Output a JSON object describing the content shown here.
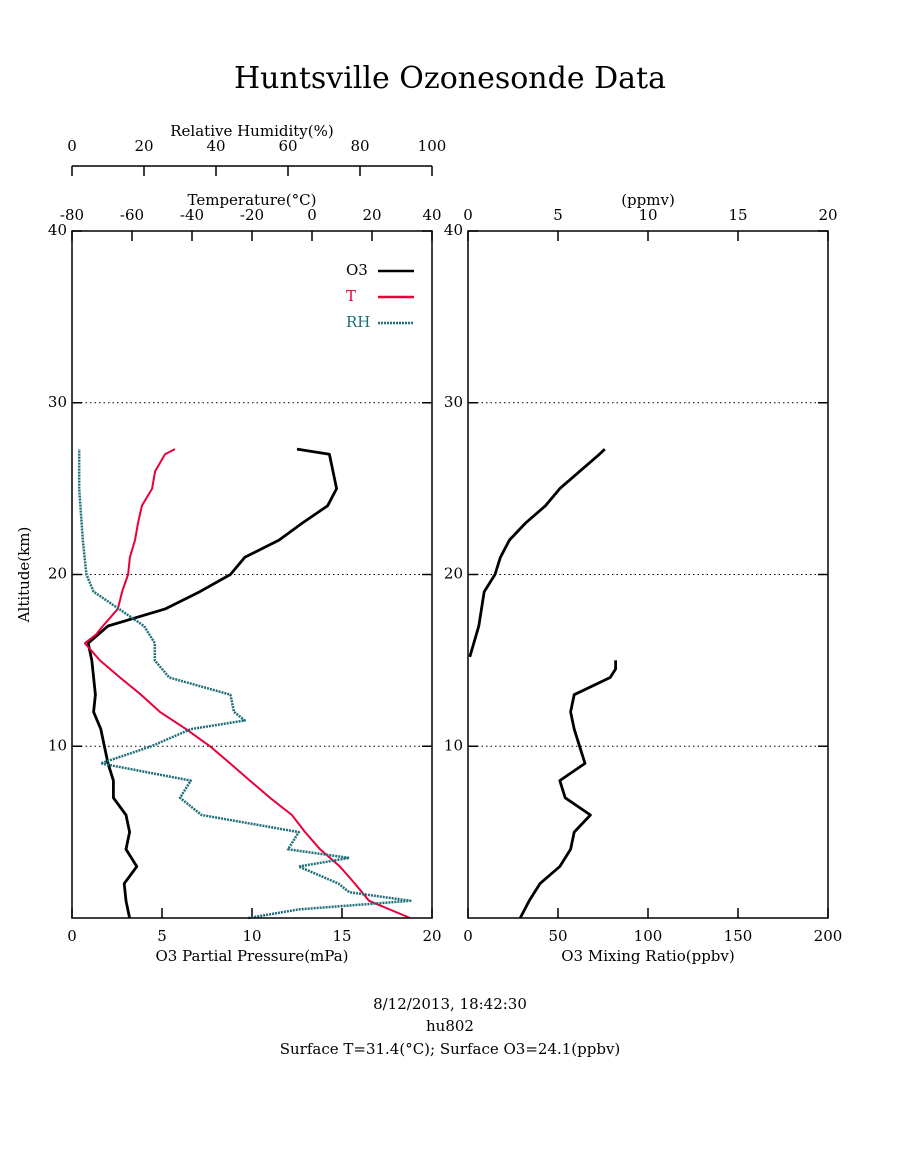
{
  "title": "Huntsville Ozonesonde Data",
  "footer": [
    "8/12/2013, 18:42:30",
    "hu802",
    "Surface T=31.4(°C); Surface O3=24.1(ppbv)"
  ],
  "chart_data": [
    {
      "type": "line",
      "ylabel": "Altitude(km)",
      "ylim": [
        0,
        40
      ],
      "yticks": [
        10,
        20,
        30,
        40
      ],
      "grid": true,
      "xlabel": "O3 Partial Pressure(mPa)",
      "xlim": [
        0,
        20
      ],
      "xticks": [
        0,
        5,
        10,
        15,
        20
      ],
      "x2label": "Temperature(°C)",
      "x2lim": [
        -80,
        40
      ],
      "x2ticks": [
        -80,
        -60,
        -40,
        -20,
        0,
        20,
        40
      ],
      "x3label": "Relative Humidity(%)",
      "x3lim": [
        0,
        100
      ],
      "x3ticks": [
        0,
        20,
        40,
        60,
        80,
        100
      ],
      "legend": "upper right",
      "series": [
        {
          "name": "O3",
          "color": "#000000",
          "axis": "x",
          "altitude": [
            0,
            1,
            2,
            3,
            4,
            5,
            6,
            7,
            8,
            9,
            10,
            11,
            12,
            13,
            14,
            15,
            16,
            17,
            18,
            19,
            20,
            21,
            22,
            23,
            24,
            25,
            26,
            27,
            27.3
          ],
          "values": [
            3.2,
            3.0,
            2.9,
            3.6,
            3.0,
            3.2,
            3.0,
            2.3,
            2.3,
            2.0,
            1.8,
            1.6,
            1.2,
            1.3,
            1.2,
            1.1,
            0.9,
            2.0,
            5.2,
            7.1,
            8.8,
            9.6,
            11.5,
            12.8,
            14.2,
            14.7,
            14.5,
            14.3,
            12.5
          ]
        },
        {
          "name": "T",
          "color": "#e8003c",
          "axis": "x2",
          "altitude": [
            0,
            1,
            2,
            3,
            4,
            5,
            6,
            7,
            8,
            9,
            10,
            11,
            12,
            13,
            14,
            15,
            16,
            16.5,
            17,
            18,
            19,
            20,
            21,
            22,
            23,
            24,
            25,
            26,
            27,
            27.3
          ],
          "values": [
            32.7,
            19,
            14.3,
            9.3,
            2.7,
            -2.3,
            -6.7,
            -14,
            -20.7,
            -27.3,
            -34,
            -42,
            -50.7,
            -57,
            -64,
            -70.7,
            -75.7,
            -72,
            -69.7,
            -64.7,
            -63.3,
            -61.3,
            -60.7,
            -59,
            -58,
            -56.7,
            -53.3,
            -52.3,
            -49,
            -45.7
          ]
        },
        {
          "name": "RH",
          "color": "#1f6e78",
          "axis": "x3",
          "altitude": [
            0,
            0.5,
            1,
            1.5,
            2,
            3,
            3.5,
            4,
            5,
            6,
            7,
            8,
            9,
            10,
            11,
            11.5,
            12,
            13,
            14,
            15,
            16,
            17,
            18,
            19,
            20,
            22,
            25,
            27.3
          ],
          "values": [
            49,
            63,
            94,
            77,
            74,
            63,
            77,
            60,
            63,
            36,
            30,
            33,
            8,
            22,
            33,
            48,
            45,
            44,
            27,
            23,
            23,
            20,
            13,
            6,
            4,
            3,
            2,
            2
          ]
        }
      ]
    },
    {
      "type": "line",
      "ylim": [
        0,
        40
      ],
      "yticks": [
        10,
        20,
        30,
        40
      ],
      "grid": true,
      "xlabel": "O3 Mixing Ratio(ppbv)",
      "xlim": [
        0,
        200
      ],
      "xticks": [
        0,
        50,
        100,
        150,
        200
      ],
      "x2label": "(ppmv)",
      "x2lim": [
        0,
        20
      ],
      "x2ticks": [
        0,
        5,
        10,
        15,
        20
      ],
      "series": [
        {
          "color": "#000000",
          "axis": "x",
          "altitude": [
            0,
            1,
            2,
            3,
            4,
            5,
            6,
            7,
            8,
            9,
            10,
            11,
            12,
            13,
            14,
            14.5,
            15,
            15.1,
            15.2,
            17,
            19,
            20,
            21,
            22,
            23,
            24,
            25,
            26,
            27,
            27.3
          ],
          "values": [
            29,
            34,
            40,
            51,
            57,
            59,
            68,
            54,
            51,
            65,
            62,
            59,
            57,
            59,
            79,
            82,
            82,
            null,
            1,
            6,
            9,
            15,
            18,
            23,
            32,
            43,
            51,
            62,
            73,
            76
          ]
        }
      ]
    }
  ]
}
